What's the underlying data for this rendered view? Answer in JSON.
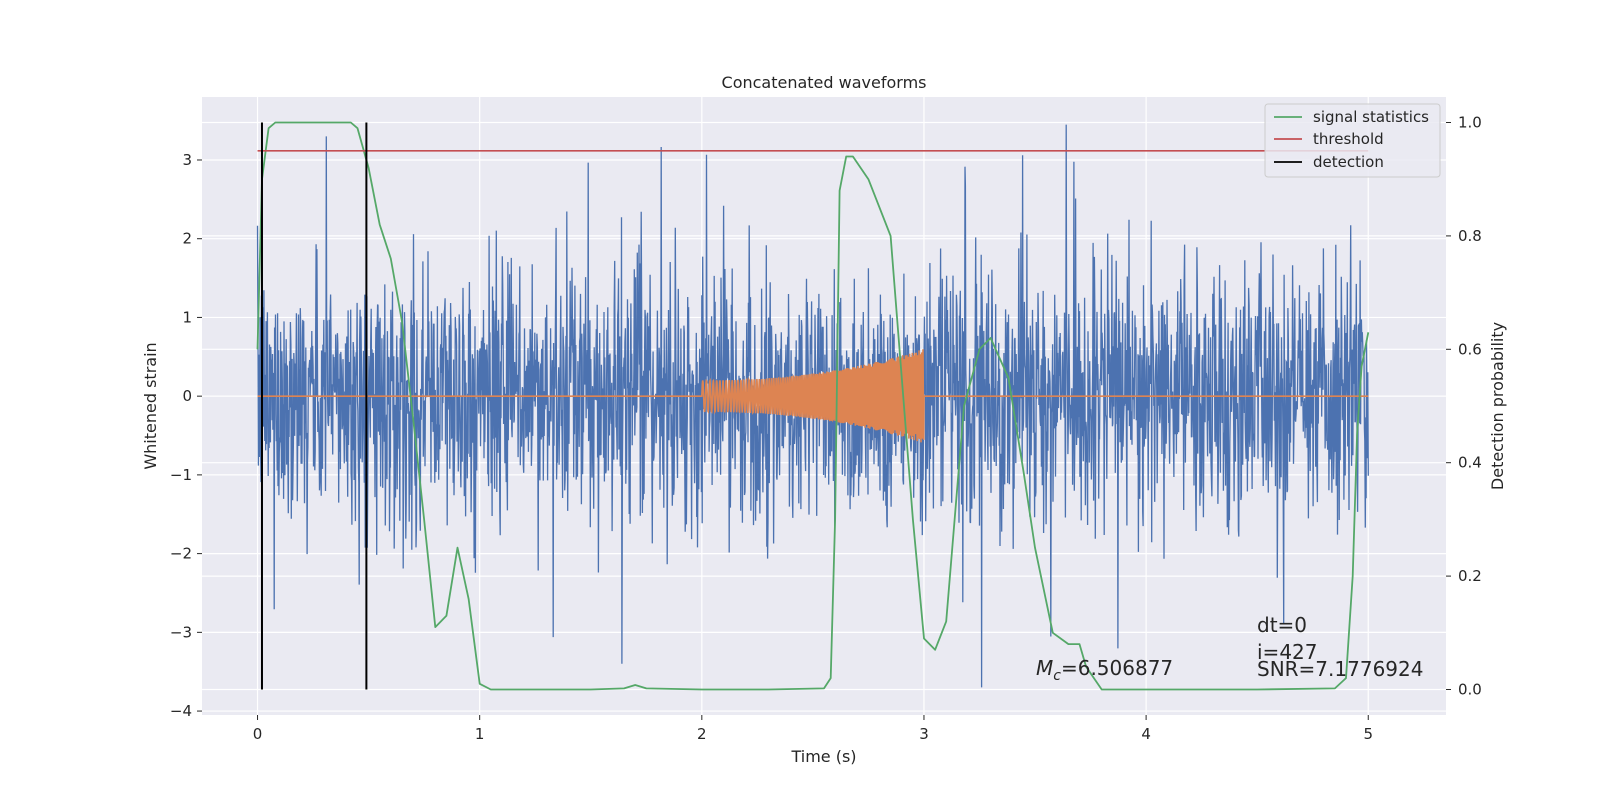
{
  "chart_data": {
    "type": "line",
    "title": "Concatenated waveforms",
    "xlabel": "Time (s)",
    "ylabel_left": "Whitened strain",
    "ylabel_right": "Detection probability",
    "xlim": [
      -0.25,
      5.35
    ],
    "ylim_left": [
      -4.05,
      3.8
    ],
    "ylim_right": [
      -0.045,
      1.045
    ],
    "xticks": [
      0,
      1,
      2,
      3,
      4,
      5
    ],
    "yticks_left": [
      3,
      2,
      1,
      0,
      -1,
      -2,
      -3,
      -4
    ],
    "yticks_right": [
      1.0,
      0.8,
      0.6,
      0.4,
      0.2,
      0.0
    ],
    "xtick_labels": [
      "0",
      "1",
      "2",
      "3",
      "4",
      "5"
    ],
    "ytick_labels_left": [
      "3",
      "2",
      "1",
      "0",
      "−1",
      "−2",
      "−3",
      "−4"
    ],
    "ytick_labels_right": [
      "1.0",
      "0.8",
      "0.6",
      "0.4",
      "0.2",
      "0.0"
    ],
    "grid": true,
    "legend_position": "top-right",
    "background_color": "#eaeaf2",
    "series": [
      {
        "name": "strain",
        "axis": "left",
        "color": "#4c72b0",
        "x_range": [
          0,
          5
        ],
        "amplitude_typical": 1.4,
        "amplitude_peak": 3.45,
        "peaks": [
          [
            0.31,
            3.3
          ],
          [
            1.64,
            -3.4
          ],
          [
            3.26,
            -3.7
          ],
          [
            3.64,
            3.45
          ],
          [
            4.62,
            -2.9
          ]
        ]
      },
      {
        "name": "injected waveform",
        "axis": "left",
        "color": "#dd8452",
        "x_range": [
          0,
          5
        ],
        "chirp_start": 2.0,
        "chirp_end": 3.0,
        "amplitude_start": 0.2,
        "amplitude_end": 0.6
      },
      {
        "name": "signal statistics",
        "axis": "right",
        "color": "#55a868",
        "x": [
          0.0,
          0.02,
          0.05,
          0.08,
          0.15,
          0.3,
          0.42,
          0.45,
          0.5,
          0.55,
          0.6,
          0.65,
          0.7,
          0.75,
          0.8,
          0.85,
          0.9,
          0.95,
          1.0,
          1.05,
          1.2,
          1.5,
          1.65,
          1.7,
          1.75,
          2.0,
          2.3,
          2.55,
          2.58,
          2.6,
          2.62,
          2.65,
          2.68,
          2.75,
          2.85,
          2.95,
          3.0,
          3.05,
          3.1,
          3.18,
          3.25,
          3.3,
          3.38,
          3.45,
          3.5,
          3.58,
          3.65,
          3.7,
          3.73,
          3.8,
          3.9,
          4.2,
          4.5,
          4.85,
          4.9,
          4.93,
          4.95,
          4.97,
          5.0
        ],
        "y": [
          0.6,
          0.9,
          0.99,
          1.0,
          1.0,
          1.0,
          1.0,
          0.99,
          0.92,
          0.82,
          0.76,
          0.65,
          0.48,
          0.3,
          0.11,
          0.13,
          0.25,
          0.16,
          0.01,
          0.0,
          0.0,
          0.0,
          0.002,
          0.008,
          0.002,
          0.0,
          0.0,
          0.002,
          0.02,
          0.3,
          0.88,
          0.94,
          0.94,
          0.9,
          0.8,
          0.3,
          0.09,
          0.07,
          0.12,
          0.5,
          0.6,
          0.62,
          0.55,
          0.38,
          0.25,
          0.1,
          0.08,
          0.08,
          0.04,
          0.0,
          0.0,
          0.0,
          0.0,
          0.002,
          0.02,
          0.2,
          0.45,
          0.57,
          0.63
        ]
      },
      {
        "name": "threshold",
        "axis": "right",
        "color": "#c44e52",
        "x": [
          0.0,
          5.0
        ],
        "y": [
          0.95,
          0.95
        ]
      },
      {
        "name": "detection",
        "axis": "right",
        "color": "#000000",
        "x": [
          0.02,
          0.49
        ],
        "y_range": [
          0.0,
          1.0
        ]
      }
    ],
    "legend": [
      "signal statistics",
      "threshold",
      "detection"
    ],
    "annotations": {
      "mc_symbol": "M",
      "mc_subscript": "c",
      "mc_value": "=6.506877",
      "dt": "dt=0",
      "i": "i=427",
      "snr": "SNR=7.1776924"
    }
  }
}
